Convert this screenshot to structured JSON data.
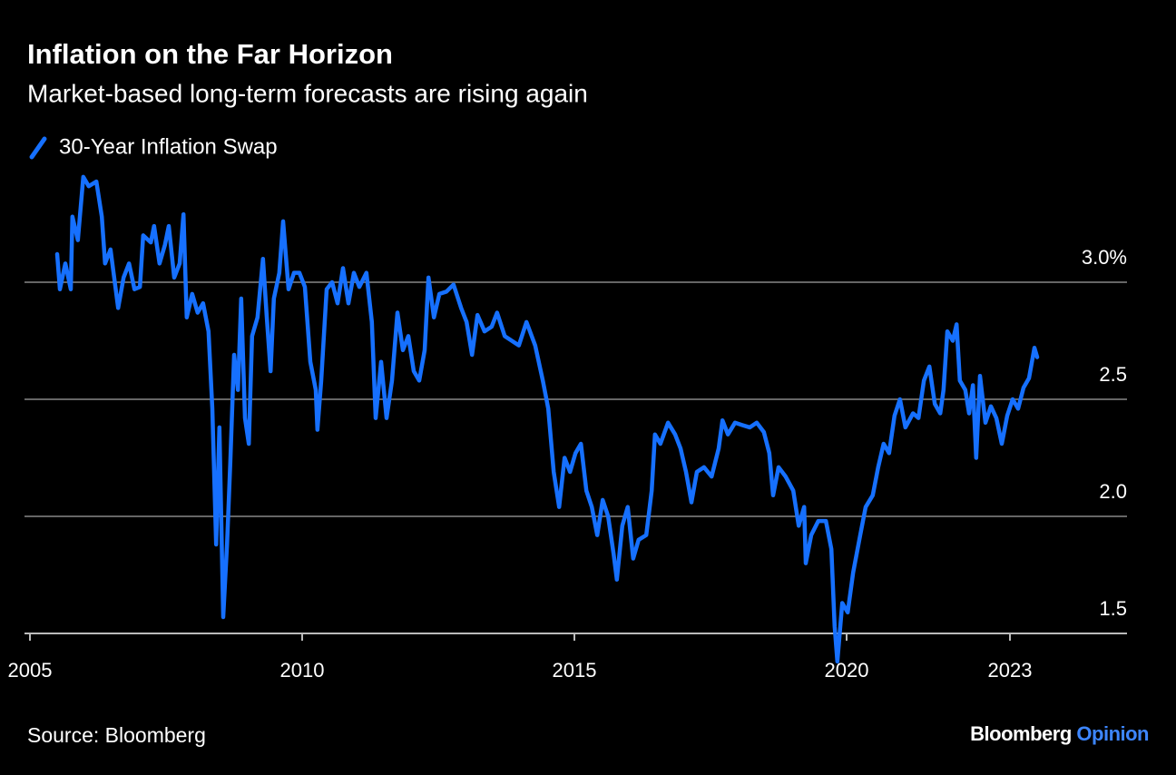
{
  "chart_data": {
    "type": "line",
    "title": "Inflation on the Far Horizon",
    "subtitle": "Market-based long-term forecasts are rising again",
    "source": "Source: Bloomberg",
    "logo": {
      "name": "Bloomberg",
      "section": "Opinion"
    },
    "xlim": [
      2004.9,
      2025.15
    ],
    "xticks": [
      2005,
      2010,
      2015,
      2020,
      2023
    ],
    "ylim": [
      1.5,
      3.5
    ],
    "yticks": [
      {
        "value": 1.5,
        "label": "1.5"
      },
      {
        "value": 2.0,
        "label": "2.0"
      },
      2.5,
      {
        "value": 3.0,
        "label": "3.0%"
      }
    ],
    "grid": true,
    "legend": "top-left",
    "x": [
      2005.5,
      2005.55,
      2005.65,
      2005.75,
      2005.78,
      2005.88,
      2005.98,
      2006.08,
      2006.22,
      2006.32,
      2006.38,
      2006.48,
      2006.62,
      2006.72,
      2006.82,
      2006.92,
      2007.02,
      2007.08,
      2007.22,
      2007.28,
      2007.38,
      2007.48,
      2007.55,
      2007.65,
      2007.75,
      2007.82,
      2007.88,
      2007.98,
      2008.08,
      2008.18,
      2008.28,
      2008.35,
      2008.42,
      2008.48,
      2008.55,
      2008.62,
      2008.68,
      2008.75,
      2008.82,
      2008.88,
      2008.95,
      2009.02,
      2009.08,
      2009.18,
      2009.28,
      2009.35,
      2009.42,
      2009.48,
      2009.58,
      2009.65,
      2009.75,
      2009.85,
      2009.95,
      2010.05,
      2010.15,
      2010.25,
      2010.28,
      2010.35,
      2010.45,
      2010.55,
      2010.65,
      2010.75,
      2010.85,
      2010.95,
      2011.05,
      2011.18,
      2011.28,
      2011.35,
      2011.45,
      2011.55,
      2011.65,
      2011.75,
      2011.85,
      2011.95,
      2012.05,
      2012.15,
      2012.25,
      2012.32,
      2012.42,
      2012.52,
      2012.65,
      2012.78,
      2012.92,
      2013.02,
      2013.12,
      2013.22,
      2013.35,
      2013.48,
      2013.58,
      2013.72,
      2013.85,
      2013.98,
      2014.12,
      2014.28,
      2014.42,
      2014.52,
      2014.62,
      2014.72,
      2014.82,
      2014.92,
      2015.02,
      2015.12,
      2015.22,
      2015.32,
      2015.42,
      2015.52,
      2015.62,
      2015.72,
      2015.78,
      2015.88,
      2015.98,
      2016.08,
      2016.18,
      2016.32,
      2016.42,
      2016.48,
      2016.58,
      2016.72,
      2016.85,
      2016.95,
      2017.05,
      2017.15,
      2017.25,
      2017.38,
      2017.52,
      2017.65,
      2017.72,
      2017.82,
      2017.95,
      2018.08,
      2018.22,
      2018.35,
      2018.48,
      2018.58,
      2018.65,
      2018.75,
      2018.88,
      2019.02,
      2019.12,
      2019.22,
      2019.25,
      2019.35,
      2019.48,
      2019.62,
      2019.72,
      2019.78,
      2019.83,
      2019.92,
      2020.02,
      2020.12,
      2020.25,
      2020.35,
      2020.48,
      2020.58,
      2020.68,
      2020.78,
      2020.88,
      2020.98,
      2021.08,
      2021.22,
      2021.32,
      2021.42,
      2021.52,
      2021.62,
      2021.72,
      2021.78,
      2021.85,
      2021.95,
      2022.02,
      2022.08,
      2022.18,
      2022.25,
      2022.32,
      2022.38,
      2022.45,
      2022.55,
      2022.65,
      2022.75,
      2022.85,
      2022.95,
      2023.05,
      2023.15,
      2023.25,
      2023.35,
      2023.45,
      2023.5
    ],
    "series": [
      {
        "name": "30-Year Inflation Swap",
        "color": "#1670ff",
        "values": [
          3.12,
          2.97,
          3.08,
          2.97,
          3.28,
          3.18,
          3.45,
          3.41,
          3.43,
          3.28,
          3.08,
          3.14,
          2.89,
          3.02,
          3.08,
          2.97,
          2.98,
          3.2,
          3.17,
          3.24,
          3.08,
          3.16,
          3.24,
          3.02,
          3.08,
          3.29,
          2.85,
          2.95,
          2.87,
          2.91,
          2.79,
          2.46,
          1.88,
          2.38,
          1.57,
          1.88,
          2.23,
          2.69,
          2.54,
          2.93,
          2.42,
          2.31,
          2.77,
          2.85,
          3.1,
          2.85,
          2.62,
          2.93,
          3.04,
          3.26,
          2.97,
          3.04,
          3.04,
          2.98,
          2.66,
          2.54,
          2.37,
          2.58,
          2.97,
          3.0,
          2.91,
          3.06,
          2.91,
          3.04,
          2.98,
          3.04,
          2.83,
          2.42,
          2.66,
          2.42,
          2.58,
          2.87,
          2.71,
          2.77,
          2.62,
          2.58,
          2.71,
          3.02,
          2.85,
          2.95,
          2.96,
          2.99,
          2.89,
          2.83,
          2.69,
          2.86,
          2.79,
          2.81,
          2.87,
          2.77,
          2.75,
          2.73,
          2.83,
          2.73,
          2.58,
          2.46,
          2.19,
          2.04,
          2.25,
          2.19,
          2.27,
          2.31,
          2.11,
          2.04,
          1.92,
          2.07,
          2.0,
          1.84,
          1.73,
          1.96,
          2.04,
          1.82,
          1.9,
          1.92,
          2.11,
          2.35,
          2.31,
          2.4,
          2.35,
          2.29,
          2.19,
          2.06,
          2.19,
          2.21,
          2.17,
          2.29,
          2.41,
          2.35,
          2.4,
          2.39,
          2.38,
          2.4,
          2.36,
          2.27,
          2.09,
          2.21,
          2.17,
          2.11,
          1.96,
          2.04,
          1.8,
          1.92,
          1.98,
          1.98,
          1.86,
          1.53,
          1.38,
          1.63,
          1.59,
          1.76,
          1.92,
          2.04,
          2.09,
          2.21,
          2.31,
          2.27,
          2.43,
          2.5,
          2.38,
          2.44,
          2.42,
          2.58,
          2.64,
          2.48,
          2.44,
          2.54,
          2.79,
          2.75,
          2.82,
          2.58,
          2.54,
          2.44,
          2.56,
          2.25,
          2.6,
          2.4,
          2.47,
          2.42,
          2.31,
          2.43,
          2.5,
          2.46,
          2.55,
          2.59,
          2.72,
          2.68
        ]
      }
    ]
  }
}
